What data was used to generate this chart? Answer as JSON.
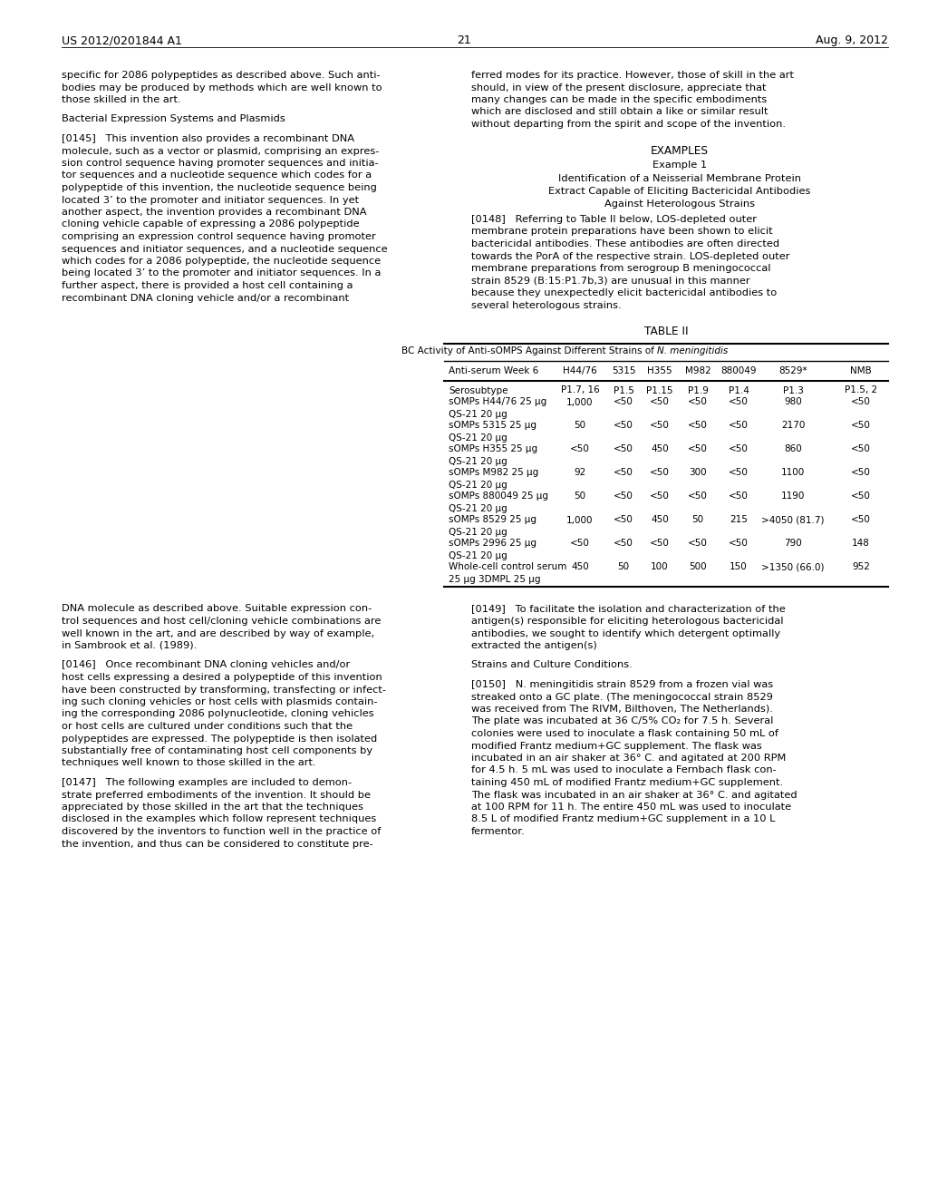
{
  "page_number": "21",
  "header_left": "US 2012/0201844 A1",
  "header_right": "Aug. 9, 2012",
  "background_color": "#ffffff",
  "left_col_top_lines": [
    "specific for 2086 polypeptides as described above. Such anti-",
    "bodies may be produced by methods which are well known to",
    "those skilled in the art."
  ],
  "left_col_section": "Bacterial Expression Systems and Plasmids",
  "para_0145_lines": [
    "[0145]   This invention also provides a recombinant DNA",
    "molecule, such as a vector or plasmid, comprising an expres-",
    "sion control sequence having promoter sequences and initia-",
    "tor sequences and a nucleotide sequence which codes for a",
    "polypeptide of this invention, the nucleotide sequence being",
    "located 3’ to the promoter and initiator sequences. In yet",
    "another aspect, the invention provides a recombinant DNA",
    "cloning vehicle capable of expressing a 2086 polypeptide",
    "comprising an expression control sequence having promoter",
    "sequences and initiator sequences, and a nucleotide sequence",
    "which codes for a 2086 polypeptide, the nucleotide sequence",
    "being located 3’ to the promoter and initiator sequences. In a",
    "further aspect, there is provided a host cell containing a",
    "recombinant DNA cloning vehicle and/or a recombinant"
  ],
  "right_col_top_lines": [
    "ferred modes for its practice. However, those of skill in the art",
    "should, in view of the present disclosure, appreciate that",
    "many changes can be made in the specific embodiments",
    "which are disclosed and still obtain a like or similar result",
    "without departing from the spirit and scope of the invention."
  ],
  "examples_header": "EXAMPLES",
  "example1_header": "Example 1",
  "example1_title_lines": [
    "Identification of a Neisserial Membrane Protein",
    "Extract Capable of Eliciting Bactericidal Antibodies",
    "Against Heterologous Strains"
  ],
  "para_0148_lines": [
    "[0148]   Referring to Table II below, LOS-depleted outer",
    "membrane protein preparations have been shown to elicit",
    "bactericidal antibodies. These antibodies are often directed",
    "towards the PorA of the respective strain. LOS-depleted outer",
    "membrane preparations from serogroup B meningococcal",
    "strain 8529 (B:15:P1.7b,3) are unusual in this manner",
    "because they unexpectedly elicit bactericidal antibodies to",
    "several heterologous strains."
  ],
  "table_title": "TABLE II",
  "table_subtitle_plain": "BC Activity of Anti-sOMPS Against Different Strains of ",
  "table_subtitle_italic": "N. meningitidis",
  "table_col_headers": [
    "Anti-serum Week 6",
    "H44/76",
    "5315",
    "H355",
    "M982",
    "880049",
    "8529*",
    "NMB"
  ],
  "table_rows": [
    [
      "Serosubtype",
      "P1.7, 16",
      "P1.5",
      "P1.15",
      "P1.9",
      "P1.4",
      "P1.3",
      "P1.5, 2"
    ],
    [
      "sOMPs H44/76 25 μg",
      "1,000",
      "<50",
      "<50",
      "<50",
      "<50",
      "980",
      "<50"
    ],
    [
      "QS-21 20 μg",
      "",
      "",
      "",
      "",
      "",
      "",
      ""
    ],
    [
      "sOMPs 5315 25 μg",
      "50",
      "<50",
      "<50",
      "<50",
      "<50",
      "2170",
      "<50"
    ],
    [
      "QS-21 20 μg",
      "",
      "",
      "",
      "",
      "",
      "",
      ""
    ],
    [
      "sOMPs H355 25 μg",
      "<50",
      "<50",
      "450",
      "<50",
      "<50",
      "860",
      "<50"
    ],
    [
      "QS-21 20 μg",
      "",
      "",
      "",
      "",
      "",
      "",
      ""
    ],
    [
      "sOMPs M982 25 μg",
      "92",
      "<50",
      "<50",
      "300",
      "<50",
      "1100",
      "<50"
    ],
    [
      "QS-21 20 μg",
      "",
      "",
      "",
      "",
      "",
      "",
      ""
    ],
    [
      "sOMPs 880049 25 μg",
      "50",
      "<50",
      "<50",
      "<50",
      "<50",
      "1190",
      "<50"
    ],
    [
      "QS-21 20 μg",
      "",
      "",
      "",
      "",
      "",
      "",
      ""
    ],
    [
      "sOMPs 8529 25 μg",
      "1,000",
      "<50",
      "450",
      "50",
      "215",
      ">4050 (81.7)",
      "<50"
    ],
    [
      "QS-21 20 μg",
      "",
      "",
      "",
      "",
      "",
      "",
      ""
    ],
    [
      "sOMPs 2996 25 μg",
      "<50",
      "<50",
      "<50",
      "<50",
      "<50",
      "790",
      "148"
    ],
    [
      "QS-21 20 μg",
      "",
      "",
      "",
      "",
      "",
      "",
      ""
    ],
    [
      "Whole-cell control serum",
      "450",
      "50",
      "100",
      "500",
      "150",
      ">1350 (66.0)",
      "952"
    ],
    [
      "25 μg 3DMPL 25 μg",
      "",
      "",
      "",
      "",
      "",
      "",
      ""
    ]
  ],
  "bottom_left_lines": [
    "DNA molecule as described above. Suitable expression con-",
    "trol sequences and host cell/cloning vehicle combinations are",
    "well known in the art, and are described by way of example,",
    "in Sambrook et al. (1989)."
  ],
  "para_0146_lines": [
    "[0146]   Once recombinant DNA cloning vehicles and/or",
    "host cells expressing a desired a polypeptide of this invention",
    "have been constructed by transforming, transfecting or infect-",
    "ing such cloning vehicles or host cells with plasmids contain-",
    "ing the corresponding 2086 polynucleotide, cloning vehicles",
    "or host cells are cultured under conditions such that the",
    "polypeptides are expressed. The polypeptide is then isolated",
    "substantially free of contaminating host cell components by",
    "techniques well known to those skilled in the art."
  ],
  "para_0147_lines": [
    "[0147]   The following examples are included to demon-",
    "strate preferred embodiments of the invention. It should be",
    "appreciated by those skilled in the art that the techniques",
    "disclosed in the examples which follow represent techniques",
    "discovered by the inventors to function well in the practice of",
    "the invention, and thus can be considered to constitute pre-"
  ],
  "para_0149_lines": [
    "[0149]   To facilitate the isolation and characterization of the",
    "antigen(s) responsible for eliciting heterologous bactericidal",
    "antibodies, we sought to identify which detergent optimally",
    "extracted the antigen(s)"
  ],
  "strains_header": "Strains and Culture Conditions.",
  "para_0150_lines": [
    "[0150]   N. meningitidis strain 8529 from a frozen vial was",
    "streaked onto a GC plate. (The meningococcal strain 8529",
    "was received from The RIVM, Bilthoven, The Netherlands).",
    "The plate was incubated at 36 C/5% CO₂ for 7.5 h. Several",
    "colonies were used to inoculate a flask containing 50 mL of",
    "modified Frantz medium+GC supplement. The flask was",
    "incubated in an air shaker at 36° C. and agitated at 200 RPM",
    "for 4.5 h. 5 mL was used to inoculate a Fernbach flask con-",
    "taining 450 mL of modified Frantz medium+GC supplement.",
    "The flask was incubated in an air shaker at 36° C. and agitated",
    "at 100 RPM for 11 h. The entire 450 mL was used to inoculate",
    "8.5 L of modified Frantz medium+GC supplement in a 10 L",
    "fermentor."
  ]
}
